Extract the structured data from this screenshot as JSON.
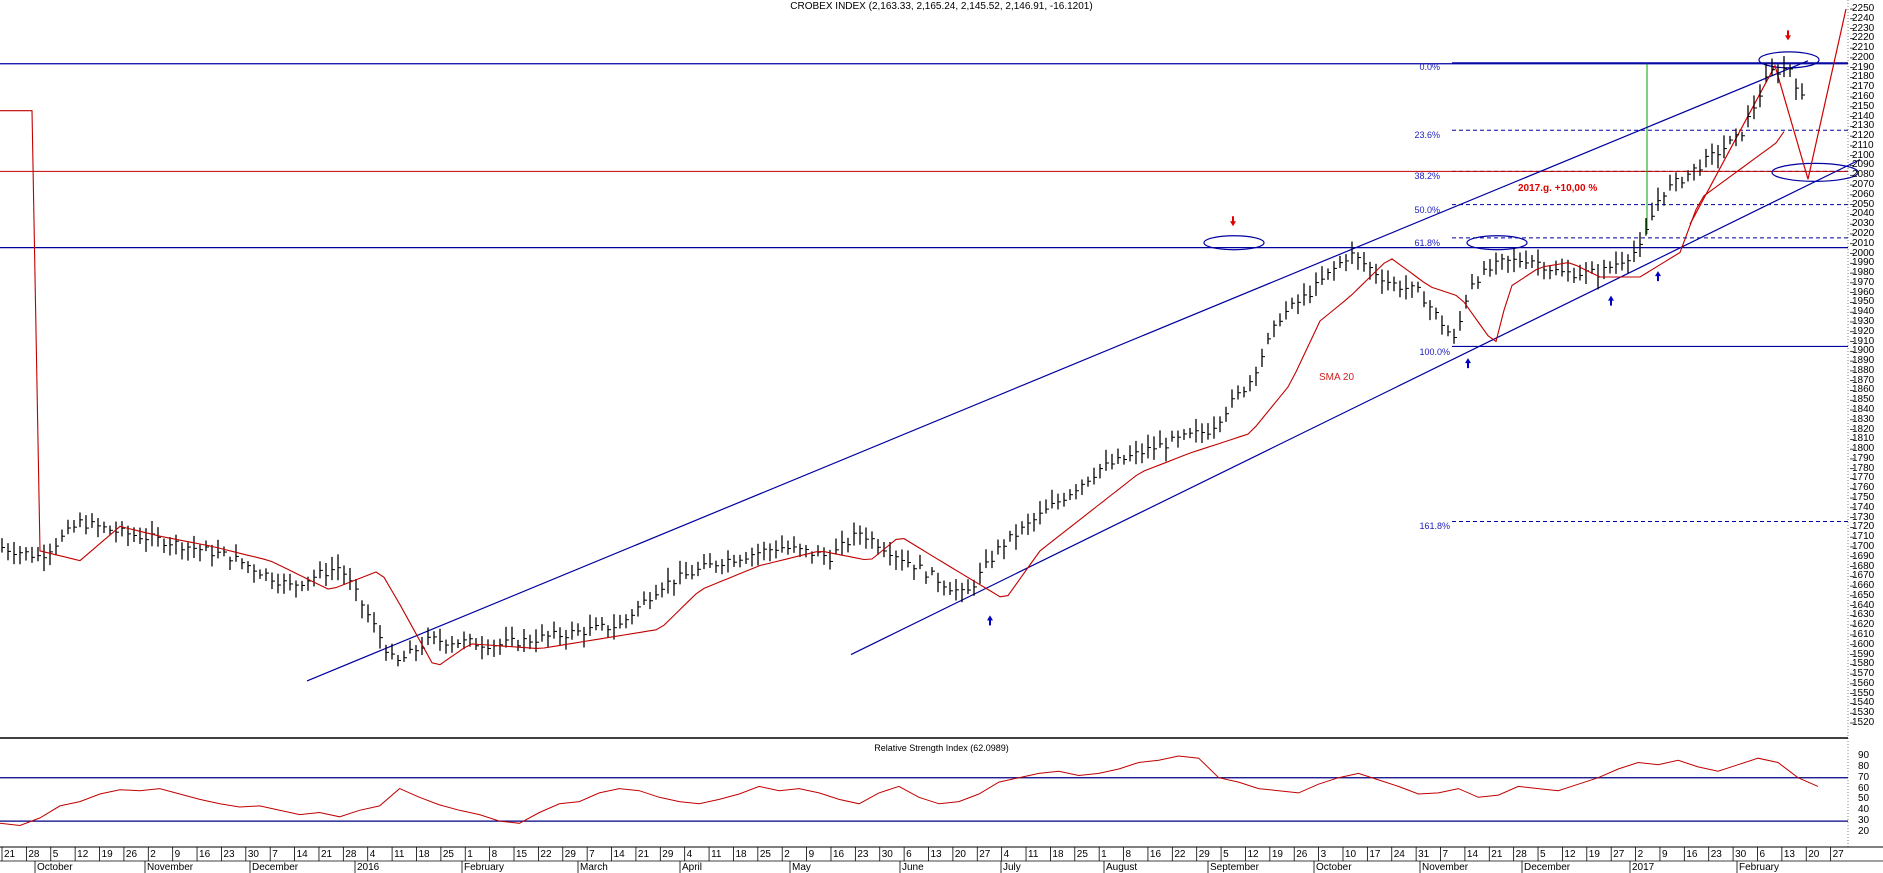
{
  "chart_data": {
    "type": "line",
    "title": "CROBEX INDEX (2,163.33, 2,165.24, 2,145.52, 2,146.91, -16.1201)",
    "instrument": "CROBEX INDEX",
    "ohlc_last": {
      "open": 2163.33,
      "high": 2165.24,
      "low": 2145.52,
      "close": 2146.91,
      "change": -16.1201
    },
    "price_axis": {
      "min": 1520,
      "max": 2250,
      "step": 10,
      "position": "right"
    },
    "x_axis": {
      "days": [
        "21",
        "28",
        "5",
        "12",
        "19",
        "26",
        "2",
        "9",
        "16",
        "23",
        "30",
        "7",
        "14",
        "21",
        "28",
        "4",
        "11",
        "18",
        "25",
        "1",
        "8",
        "15",
        "22",
        "29",
        "7",
        "14",
        "21",
        "29",
        "4",
        "11",
        "18",
        "25",
        "2",
        "9",
        "16",
        "23",
        "30",
        "6",
        "13",
        "20",
        "27",
        "4",
        "11",
        "18",
        "25",
        "1",
        "8",
        "16",
        "22",
        "29",
        "5",
        "12",
        "19",
        "26",
        "3",
        "10",
        "17",
        "24",
        "31",
        "7",
        "14",
        "21",
        "28",
        "5",
        "12",
        "19",
        "27",
        "2",
        "9",
        "16",
        "23",
        "30",
        "6",
        "13",
        "20",
        "27"
      ],
      "months": [
        "October",
        "November",
        "December",
        "2016",
        "February",
        "March",
        "April",
        "May",
        "June",
        "July",
        "August",
        "September",
        "October",
        "November",
        "December",
        "2017",
        "February"
      ]
    },
    "series": [
      {
        "name": "CROBEX (OHLC bars)",
        "type": "ohlc",
        "x": [
          "2015-10",
          "2015-11",
          "2015-12",
          "2016-01",
          "2016-02",
          "2016-03",
          "2016-04",
          "2016-05",
          "2016-06",
          "2016-07",
          "2016-08",
          "2016-09",
          "2016-10",
          "2016-11",
          "2016-12",
          "2017-01",
          "2017-02"
        ],
        "values": [
          1700,
          1720,
          1700,
          1665,
          1605,
          1610,
          1670,
          1695,
          1700,
          1680,
          1770,
          1850,
          1990,
          1930,
          1980,
          2080,
          2190
        ]
      },
      {
        "name": "SMA 20",
        "type": "line",
        "color": "#c00000",
        "values": [
          1705,
          1715,
          1705,
          1680,
          1640,
          1605,
          1625,
          1670,
          1695,
          1690,
          1720,
          1790,
          1920,
          1960,
          1970,
          2010,
          2120
        ]
      }
    ],
    "fibonacci": {
      "high": 2195,
      "low": 1905,
      "levels": [
        {
          "label": "0.0%",
          "price": 2195
        },
        {
          "label": "23.6%",
          "price": 2126
        },
        {
          "label": "38.2%",
          "price": 2084
        },
        {
          "label": "50.0%",
          "price": 2050
        },
        {
          "label": "61.8%",
          "price": 2016
        },
        {
          "label": "100.0%",
          "price": 1905
        },
        {
          "label": "161.8%",
          "price": 1726
        }
      ]
    },
    "horizontal_lines": [
      {
        "price": 2195,
        "color": "#0000a0"
      },
      {
        "price": 2084,
        "color": "#c00000"
      },
      {
        "price": 2005,
        "color": "#0000a0"
      }
    ],
    "annotations": [
      {
        "text": "2017.g. +10,00 %",
        "color": "#e00000"
      },
      {
        "text": "SMA 20",
        "color": "#d02020"
      }
    ],
    "rsi": {
      "title": "Relative Strength Index (62.0989)",
      "value": 62.0989,
      "axis": [
        90,
        80,
        70,
        60,
        50,
        40,
        30,
        20
      ],
      "bands": [
        70,
        30
      ],
      "values": [
        28,
        26,
        33,
        44,
        48,
        55,
        59,
        58,
        60,
        55,
        50,
        46,
        43,
        44,
        40,
        36,
        38,
        34,
        40,
        44,
        60,
        52,
        45,
        40,
        36,
        30,
        28,
        38,
        46,
        48,
        56,
        60,
        58,
        52,
        48,
        46,
        50,
        55,
        62,
        58,
        60,
        56,
        50,
        46,
        56,
        62,
        52,
        46,
        48,
        55,
        66,
        70,
        74,
        76,
        72,
        74,
        78,
        84,
        86,
        90,
        88,
        70,
        66,
        60,
        58,
        56,
        64,
        70,
        74,
        68,
        62,
        55,
        56,
        60,
        52,
        54,
        62,
        60,
        58,
        64,
        70,
        78,
        84,
        82,
        86,
        80,
        76,
        82,
        88,
        84,
        70,
        62
      ]
    }
  },
  "labels": {
    "title": "CROBEX INDEX (2,163.33, 2,165.24, 2,145.52, 2,146.91, -16.1201)",
    "rsi_title": "Relative Strength Index (62.0989)",
    "annotation_2017": "2017.g. +10,00 %",
    "sma_label": "SMA 20",
    "fib": [
      "0.0%",
      "23.6%",
      "38.2%",
      "50.0%",
      "61.8%",
      "100.0%",
      "161.8%"
    ]
  }
}
